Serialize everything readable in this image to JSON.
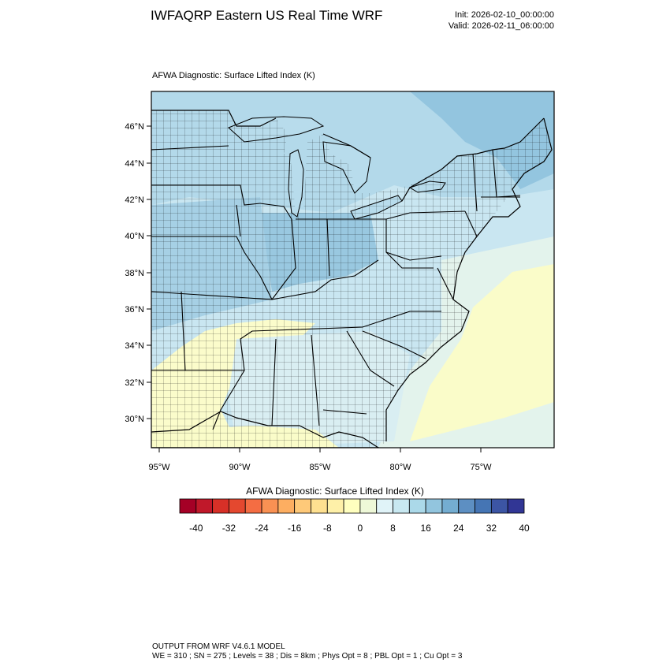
{
  "header": {
    "title": "IWFAQRP Eastern US Real Time WRF",
    "init": "Init: 2026-02-10_00:00:00",
    "valid": "Valid: 2026-02-11_06:00:00"
  },
  "map": {
    "field_title": "AFWA Diagnostic: Surface Lifted Index   (K)",
    "lat_labels": [
      "46°N",
      "44°N",
      "42°N",
      "40°N",
      "38°N",
      "36°N",
      "34°N",
      "32°N",
      "30°N"
    ],
    "lon_labels": [
      "95°W",
      "90°W",
      "85°W",
      "80°W",
      "75°W"
    ]
  },
  "colorbar": {
    "title": "AFWA Diagnostic: Surface Lifted Index  (K)",
    "colors": [
      "#a50026",
      "#c0182a",
      "#d73027",
      "#e4482f",
      "#f46d43",
      "#f99153",
      "#fdae61",
      "#fec979",
      "#fee090",
      "#fef0a8",
      "#ffffbf",
      "#eef8d8",
      "#e0f3f8",
      "#c8e8f1",
      "#abd9e9",
      "#92c5de",
      "#74add1",
      "#5d8fc2",
      "#4575b4",
      "#3c55a4",
      "#313695"
    ],
    "labels": [
      "-40",
      "-32",
      "-24",
      "-16",
      "-8",
      "0",
      "8",
      "16",
      "24",
      "32",
      "40"
    ]
  },
  "footer": {
    "line1": "OUTPUT FROM WRF V4.6.1 MODEL",
    "line2": "WE = 310 ; SN = 275 ; Levels = 38 ; Dis = 8km ; Phys Opt = 8 ; PBL Opt = 1 ; Cu Opt = 3"
  },
  "colors": {
    "ocean_far": "#ecf7e4",
    "yellow": "#fdfdc4",
    "light_blue": "#cfe8f2",
    "mid_blue": "#a9d3e6",
    "deep_blue": "#8dbedb"
  }
}
